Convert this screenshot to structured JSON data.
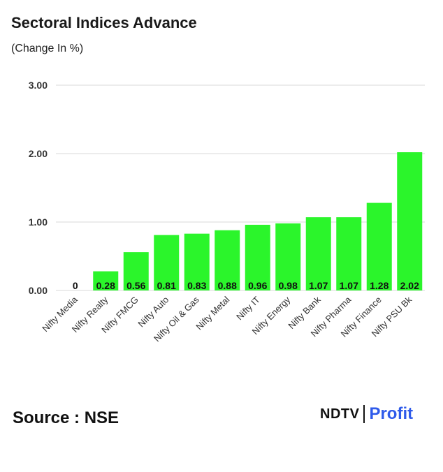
{
  "title": "Sectoral Indices Advance",
  "subtitle": "(Change In %)",
  "source": "Source : NSE",
  "logo": {
    "part1": "NDTV",
    "part2": "Profit"
  },
  "colors": {
    "bar": "#2bf52b",
    "grid": "#d9d9d9",
    "logo_accent": "#2f5bea"
  },
  "chart_data": {
    "type": "bar",
    "title": "Sectoral Indices Advance",
    "ylabel": "(Change In %)",
    "xlabel": "",
    "ylim": [
      0,
      3
    ],
    "yticks": [
      0,
      1,
      2,
      3
    ],
    "ytick_labels": [
      "0.00",
      "1.00",
      "2.00",
      "3.00"
    ],
    "grid": true,
    "categories": [
      "Nifty Media",
      "Nifty Realty",
      "Nifty FMCG",
      "Nifty Auto",
      "Nifty Oil & Gas",
      "Nifty Metal",
      "Nifty IT",
      "Nifty Energy",
      "Nifty Bank",
      "Nifty Pharma",
      "Nifty Finance",
      "Nifty PSU Bk"
    ],
    "values": [
      0,
      0.28,
      0.56,
      0.81,
      0.83,
      0.88,
      0.96,
      0.98,
      1.07,
      1.07,
      1.28,
      2.02
    ],
    "value_labels": [
      "0",
      "0.28",
      "0.56",
      "0.81",
      "0.83",
      "0.88",
      "0.96",
      "0.98",
      "1.07",
      "1.07",
      "1.28",
      "2.02"
    ]
  }
}
